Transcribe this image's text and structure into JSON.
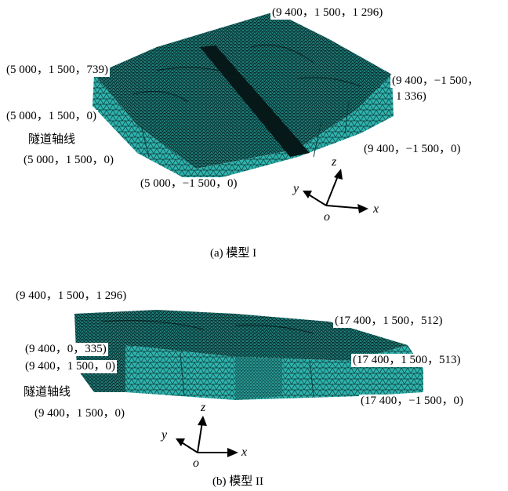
{
  "panels": [
    {
      "caption": "(a) 模型 I",
      "labels": {
        "top_right": "(9 400，1 500，1 296)",
        "top_left": "(5 000，1 500，739)",
        "right_upper_line1": "(9 400，−1 500，",
        "right_upper_line2": "1 336)",
        "left_mid": "(5 000，1 500，0)",
        "tunnel_axis": "隧道轴线",
        "tunnel_coord": "(5 000，1 500，0)",
        "right_lower": "(9 400，−1 500，0)",
        "bottom": "(5 000，−1 500，0)"
      },
      "axes": {
        "z": "z",
        "y": "y",
        "x": "x",
        "o": "o"
      }
    },
    {
      "caption": "(b) 模型 II",
      "labels": {
        "top_left": "(9 400，1 500，1 296)",
        "top_right": "(17 400，1 500，512)",
        "left_upper": "(9 400，0，335)",
        "left_lower": "(9 400，1 500，0)",
        "right_mid": "(17 400，1 500，513)",
        "tunnel_axis": "隧道轴线",
        "tunnel_coord": "(9 400，1 500，0)",
        "right_lower": "(17 400，−1 500，0)"
      },
      "axes": {
        "z": "z",
        "y": "y",
        "x": "x",
        "o": "o"
      }
    }
  ],
  "colors": {
    "mesh_fill": "#2fb3ad",
    "mesh_line": "#0b3d3c",
    "dark": "#061818"
  }
}
